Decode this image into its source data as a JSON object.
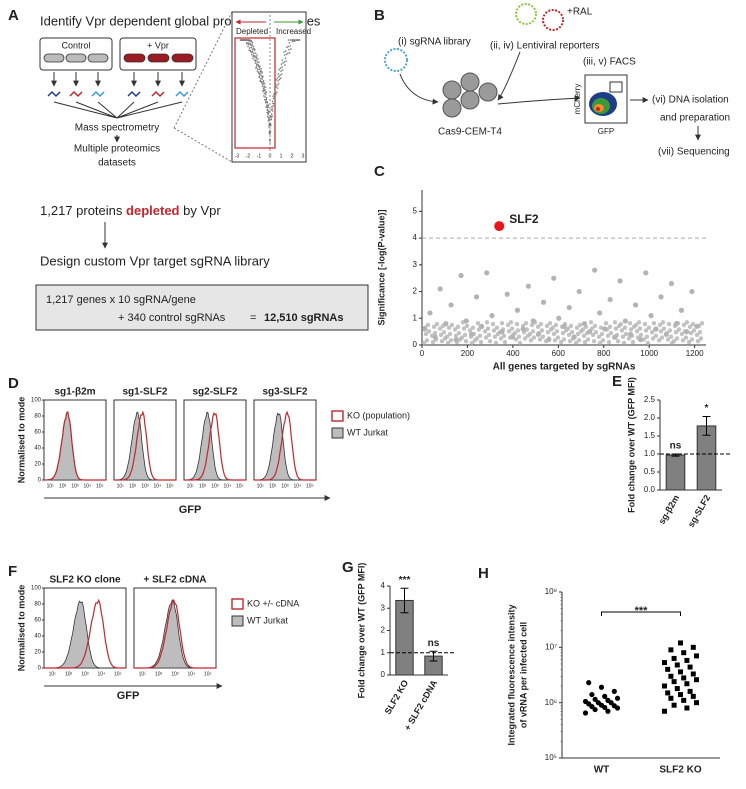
{
  "panel_a": {
    "letter": "A",
    "title": "Identify Vpr dependent global proteome changes",
    "control": "Control",
    "vpr": "+ Vpr",
    "mass_spec": "Mass spectrometry",
    "datasets": [
      "Multiple proteomics",
      "datasets"
    ],
    "depleted_label": "Depleted",
    "increased_label": "Increased",
    "volcano_xticks": [
      -3,
      -2,
      -1,
      0,
      1,
      2,
      3
    ],
    "proteins_prefix": "1,217 proteins",
    "proteins_highlight": "depleted",
    "proteins_suffix": "by Vpr",
    "design": "Design custom Vpr target sgRNA library",
    "box_line1": "1,217 genes x 10 sgRNA/gene",
    "box_line2": "+ 340 control sgRNAs",
    "box_eq": "=",
    "box_total": "12,510 sgRNAs"
  },
  "panel_b": {
    "letter": "B",
    "library": "(i) sgRNA library",
    "ral": "+RAL",
    "reporters": "(ii, iv) Lentiviral reporters",
    "cells": "Cas9-CEM-T4",
    "facs": "(iii, v) FACS",
    "facs_y": "mCherry",
    "facs_x": "GFP",
    "dna": [
      "(vi) DNA isolation",
      "and preparation"
    ],
    "seq": "(vii) Sequencing"
  },
  "panel_d": {
    "letter": "D",
    "titles": [
      "sg1-β2m",
      "sg1-SLF2",
      "sg2-SLF2",
      "sg3-SLF2"
    ],
    "y_label": "Normalised to mode",
    "yticks": [
      0,
      20,
      40,
      60,
      80,
      100
    ],
    "xtick_labels": [
      "10¹",
      "10²",
      "10³",
      "10⁴",
      "10⁵"
    ],
    "x_label": "GFP",
    "legend": [
      "KO (population)",
      "WT Jurkat"
    ]
  },
  "panel_f": {
    "letter": "F",
    "titles": [
      "SLF2 KO clone",
      "+ SLF2 cDNA"
    ],
    "y_label": "Normalised to mode",
    "yticks": [
      0,
      20,
      40,
      60,
      80,
      100
    ],
    "xtick_labels": [
      "10¹",
      "10²",
      "10³",
      "10⁴",
      "10⁵"
    ],
    "x_label": "GFP",
    "legend": [
      "KO +/- cDNA",
      "WT Jurkat"
    ]
  },
  "chart_data": [
    {
      "type": "scatter",
      "letter": "C",
      "x_label": "All genes targeted by sgRNAs",
      "y_label": "Significance [-log(P-value)]",
      "x": [
        12,
        35,
        58,
        80,
        105,
        128,
        150,
        172,
        195,
        218,
        240,
        262,
        285,
        308,
        352,
        375,
        398,
        420,
        445,
        468,
        490,
        512,
        535,
        558,
        580,
        602,
        625,
        648,
        670,
        692,
        715,
        738,
        760,
        782,
        805,
        828,
        850,
        872,
        895,
        918,
        940,
        962,
        985,
        1008,
        1030,
        1052,
        1075,
        1098,
        1120,
        1142,
        1165,
        1188,
        1210
      ],
      "values": [
        0.6,
        1.2,
        0.3,
        2.1,
        0.8,
        1.5,
        0.2,
        2.6,
        0.9,
        0.4,
        1.8,
        0.7,
        2.7,
        1.1,
        0.5,
        1.9,
        0.3,
        1.3,
        0.6,
        2.2,
        0.9,
        0.4,
        1.6,
        0.2,
        2.5,
        1.0,
        0.7,
        1.4,
        0.3,
        2.0,
        0.8,
        0.5,
        2.8,
        1.2,
        0.6,
        1.7,
        0.3,
        2.4,
        0.9,
        0.4,
        1.5,
        0.2,
        2.7,
        1.1,
        0.6,
        1.8,
        0.4,
        2.3,
        0.8,
        1.3,
        0.5,
        2.0,
        0.7
      ],
      "color": "#b3b3b3",
      "highlight": {
        "label": "SLF2",
        "x": 340,
        "value": 4.45,
        "color": "#e8161b"
      },
      "threshold": 4,
      "xlim": [
        0,
        1250
      ],
      "xticks": [
        0,
        200,
        400,
        600,
        800,
        1000,
        1200
      ],
      "ylim": [
        0,
        5.8
      ],
      "yticks": [
        0,
        1,
        2,
        3,
        4,
        5
      ]
    },
    {
      "type": "bar",
      "letter": "E",
      "y_label": "Fold change over WT (GFP MFI)",
      "categories": [
        "sg-β2m",
        "sg-SLF2"
      ],
      "values": [
        0.97,
        1.78
      ],
      "errors": [
        0.03,
        0.26
      ],
      "annotations": [
        "ns",
        "*"
      ],
      "color": "#808080",
      "reference": 1,
      "ylim": [
        0,
        2.5
      ],
      "yticks": [
        {
          "value": 0,
          "label": "0.0"
        },
        0.5,
        {
          "value": 1,
          "label": "1.0"
        },
        1.5,
        {
          "value": 2,
          "label": "2.0"
        },
        2.5
      ]
    },
    {
      "type": "bar",
      "letter": "G",
      "y_label": "Fold change over WT (GFP MFI)",
      "categories": [
        "SLF2 KO",
        "+ SLF2 cDNA"
      ],
      "values": [
        3.35,
        0.85
      ],
      "errors": [
        0.55,
        0.22
      ],
      "annotations": [
        "***",
        "ns"
      ],
      "color": "#808080",
      "reference": 1,
      "ylim": [
        0,
        4
      ],
      "yticks": [
        0,
        1,
        2,
        3,
        4
      ]
    },
    {
      "type": "strip",
      "letter": "H",
      "y_label": [
        "Integrated fluorescence intensity",
        "of vRNA per infected cell"
      ],
      "categories": [
        "WT",
        "SLF2 KO"
      ],
      "log_scale": true,
      "annotation": "***",
      "series": [
        {
          "values": [
            650000,
            700000,
            750000,
            800000,
            820000,
            850000,
            880000,
            900000,
            950000,
            1000000,
            1000000,
            1050000,
            1100000,
            1150000,
            1200000,
            1300000,
            1400000,
            1600000,
            1900000,
            2300000
          ],
          "color": "#000000"
        },
        {
          "values": [
            700000,
            800000,
            900000,
            1000000,
            1100000,
            1200000,
            1300000,
            1400000,
            1500000,
            1600000,
            1800000,
            2000000,
            2200000,
            2400000,
            2600000,
            2800000,
            3000000,
            3300000,
            3600000,
            4000000,
            4400000,
            4800000,
            5300000,
            5800000,
            6300000,
            7000000,
            8000000,
            9000000,
            10000000,
            12000000
          ],
          "color": "#000000"
        }
      ],
      "ylim": [
        100000,
        100000000
      ],
      "yticks": [
        {
          "value": 100000,
          "label": "10⁵"
        },
        {
          "value": 1000000,
          "label": "10⁶"
        },
        {
          "value": 10000000,
          "label": "10⁷"
        },
        {
          "value": 100000000,
          "label": "10⁸"
        }
      ]
    }
  ]
}
